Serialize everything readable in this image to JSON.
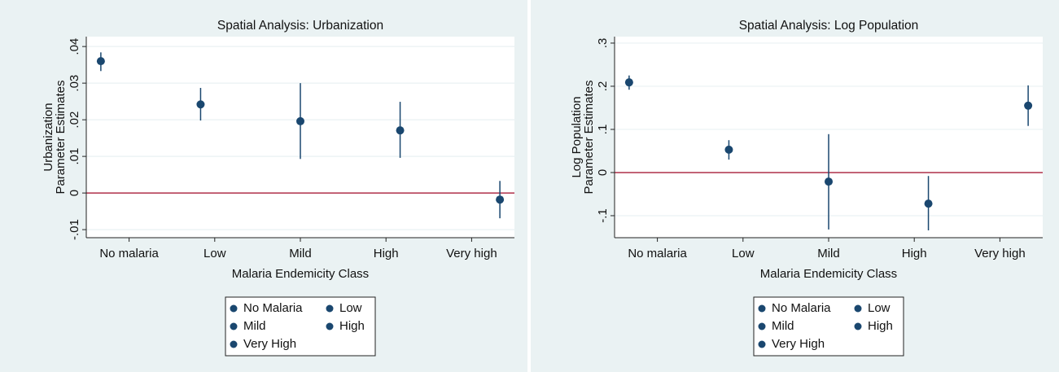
{
  "chart_data": [
    {
      "type": "scatter",
      "title": "Spatial Analysis: Urbanization",
      "xlabel": "Malaria Endemicity Class",
      "ylabel": [
        "Urbanization",
        "Parameter Estimates"
      ],
      "categories": [
        "No malaria",
        "Low",
        "Mild",
        "High",
        "Very high"
      ],
      "ylim": [
        -0.0122,
        0.0427
      ],
      "yticks": [
        {
          "value": -0.01,
          "label": "-.01"
        },
        {
          "value": 0,
          "label": "0"
        },
        {
          "value": 0.01,
          "label": ".01"
        },
        {
          "value": 0.02,
          "label": ".02"
        },
        {
          "value": 0.03,
          "label": ".03"
        },
        {
          "value": 0.04,
          "label": ".04"
        }
      ],
      "grid": true,
      "refline": 0,
      "refline_color": "#b0304a",
      "series": [
        {
          "name": "No Malaria",
          "color": "#1a476f",
          "values": [
            0.036,
            null,
            null,
            null,
            null
          ],
          "lower": [
            0.0333,
            null,
            null,
            null,
            null
          ],
          "upper": [
            0.0384,
            null,
            null,
            null,
            null
          ]
        },
        {
          "name": "Low",
          "color": "#1a476f",
          "values": [
            null,
            0.0242,
            null,
            null,
            null
          ],
          "lower": [
            null,
            0.0198,
            null,
            null,
            null
          ],
          "upper": [
            null,
            0.0287,
            null,
            null,
            null
          ]
        },
        {
          "name": "Mild",
          "color": "#1a476f",
          "values": [
            null,
            null,
            0.0196,
            null,
            null
          ],
          "lower": [
            null,
            null,
            0.0093,
            null,
            null
          ],
          "upper": [
            null,
            null,
            0.03,
            null,
            null
          ]
        },
        {
          "name": "High",
          "color": "#1a476f",
          "values": [
            null,
            null,
            null,
            0.0171,
            null
          ],
          "lower": [
            null,
            null,
            null,
            0.0096,
            null
          ],
          "upper": [
            null,
            null,
            null,
            0.0249,
            null
          ]
        },
        {
          "name": "Very High",
          "color": "#1a476f",
          "values": [
            null,
            null,
            null,
            null,
            -0.0018
          ],
          "lower": [
            null,
            null,
            null,
            null,
            -0.0069
          ],
          "upper": [
            null,
            null,
            null,
            null,
            0.0033
          ]
        }
      ]
    },
    {
      "type": "scatter",
      "title": "Spatial Analysis: Log Population",
      "xlabel": "Malaria Endemicity Class",
      "ylabel": [
        "Log Population",
        "Parameter Estimates"
      ],
      "categories": [
        "No malaria",
        "Low",
        "Mild",
        "High",
        "Very high"
      ],
      "ylim": [
        -0.151,
        0.315
      ],
      "yticks": [
        {
          "value": -0.1,
          "label": "-.1"
        },
        {
          "value": 0,
          "label": "0"
        },
        {
          "value": 0.1,
          "label": ".1"
        },
        {
          "value": 0.2,
          "label": ".2"
        },
        {
          "value": 0.3,
          "label": ".3"
        }
      ],
      "grid": true,
      "refline": 0,
      "refline_color": "#b0304a",
      "series": [
        {
          "name": "No Malaria",
          "color": "#1a476f",
          "values": [
            0.209,
            null,
            null,
            null,
            null
          ],
          "lower": [
            0.192,
            null,
            null,
            null,
            null
          ],
          "upper": [
            0.225,
            null,
            null,
            null,
            null
          ]
        },
        {
          "name": "Low",
          "color": "#1a476f",
          "values": [
            null,
            0.053,
            null,
            null,
            null
          ],
          "lower": [
            null,
            0.03,
            null,
            null,
            null
          ],
          "upper": [
            null,
            0.075,
            null,
            null,
            null
          ]
        },
        {
          "name": "Mild",
          "color": "#1a476f",
          "values": [
            null,
            null,
            -0.021,
            null,
            null
          ],
          "lower": [
            null,
            null,
            -0.132,
            null,
            null
          ],
          "upper": [
            null,
            null,
            0.089,
            null,
            null
          ]
        },
        {
          "name": "High",
          "color": "#1a476f",
          "values": [
            null,
            null,
            null,
            -0.072,
            null
          ],
          "lower": [
            null,
            null,
            null,
            -0.134,
            null
          ],
          "upper": [
            null,
            null,
            null,
            -0.008,
            null
          ]
        },
        {
          "name": "Very High",
          "color": "#1a476f",
          "values": [
            null,
            null,
            null,
            null,
            0.155
          ],
          "lower": [
            null,
            null,
            null,
            null,
            0.108
          ],
          "upper": [
            null,
            null,
            null,
            null,
            0.202
          ]
        }
      ]
    }
  ]
}
